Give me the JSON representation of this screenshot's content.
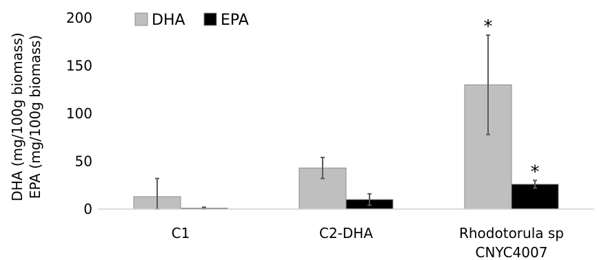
{
  "chart_data": {
    "type": "bar",
    "categories": [
      [
        "C1"
      ],
      [
        "C2-DHA"
      ],
      [
        "Rhodotorula sp",
        "CNYC4007"
      ]
    ],
    "series": [
      {
        "name": "DHA",
        "color": "#bfbfbf",
        "values": [
          13,
          43,
          130
        ],
        "err": [
          19,
          11,
          52
        ],
        "sig": [
          false,
          false,
          true
        ]
      },
      {
        "name": "EPA",
        "color": "#000000",
        "values": [
          1,
          10,
          26
        ],
        "err": [
          1,
          6,
          4
        ],
        "sig": [
          false,
          false,
          true
        ]
      }
    ],
    "ylabel": [
      "DHA (mg/100g biomass)",
      "EPA (mg/100g biomass)"
    ],
    "ylim": [
      0,
      200
    ],
    "yticks": [
      0,
      50,
      100,
      150,
      200
    ],
    "significance_marker": "*",
    "legend": "top-left",
    "grid": false
  }
}
